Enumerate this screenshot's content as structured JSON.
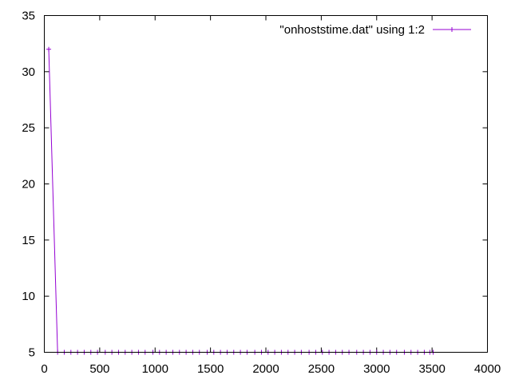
{
  "chart_data": {
    "type": "line",
    "title": "",
    "xlabel": "",
    "ylabel": "",
    "xlim": [
      0,
      4000
    ],
    "ylim": [
      5,
      35
    ],
    "x_ticks": [
      0,
      500,
      1000,
      1500,
      2000,
      2500,
      3000,
      3500,
      4000
    ],
    "y_ticks": [
      5,
      10,
      15,
      20,
      25,
      30,
      35
    ],
    "x_tick_labels": [
      "0",
      "500",
      "1000",
      "1500",
      "2000",
      "2500",
      "3000",
      "3500",
      "4000"
    ],
    "y_tick_labels": [
      "5",
      "10",
      "15",
      "20",
      "25",
      "30",
      "35"
    ],
    "grid": false,
    "legend_position": "top-right",
    "series": [
      {
        "name": "\"onhoststime.dat\" using 1:2",
        "color": "#9400d3",
        "marker": "plus",
        "points": [
          [
            40,
            32
          ],
          [
            120,
            5
          ],
          [
            180,
            5
          ],
          [
            240,
            5
          ],
          [
            300,
            5
          ],
          [
            360,
            5
          ],
          [
            420,
            5
          ],
          [
            480,
            5
          ],
          [
            550,
            5
          ],
          [
            610,
            5
          ],
          [
            670,
            5
          ],
          [
            730,
            5
          ],
          [
            790,
            5
          ],
          [
            850,
            5
          ],
          [
            910,
            5
          ],
          [
            980,
            5
          ],
          [
            1040,
            5
          ],
          [
            1100,
            5
          ],
          [
            1160,
            5
          ],
          [
            1220,
            5
          ],
          [
            1280,
            5
          ],
          [
            1340,
            5
          ],
          [
            1400,
            5
          ],
          [
            1470,
            5
          ],
          [
            1530,
            5
          ],
          [
            1590,
            5
          ],
          [
            1650,
            5
          ],
          [
            1710,
            5
          ],
          [
            1770,
            5
          ],
          [
            1830,
            5
          ],
          [
            1900,
            5
          ],
          [
            1960,
            5
          ],
          [
            2020,
            5
          ],
          [
            2080,
            5
          ],
          [
            2140,
            5
          ],
          [
            2200,
            5
          ],
          [
            2260,
            5
          ],
          [
            2320,
            5
          ],
          [
            2390,
            5
          ],
          [
            2450,
            5
          ],
          [
            2510,
            5
          ],
          [
            2570,
            5
          ],
          [
            2630,
            5
          ],
          [
            2690,
            5
          ],
          [
            2750,
            5
          ],
          [
            2820,
            5
          ],
          [
            2880,
            5
          ],
          [
            2940,
            5
          ],
          [
            3000,
            5
          ],
          [
            3060,
            5
          ],
          [
            3120,
            5
          ],
          [
            3180,
            5
          ],
          [
            3250,
            5
          ],
          [
            3310,
            5
          ],
          [
            3370,
            5
          ],
          [
            3430,
            5
          ],
          [
            3480,
            5
          ],
          [
            3510,
            5
          ]
        ]
      }
    ]
  }
}
